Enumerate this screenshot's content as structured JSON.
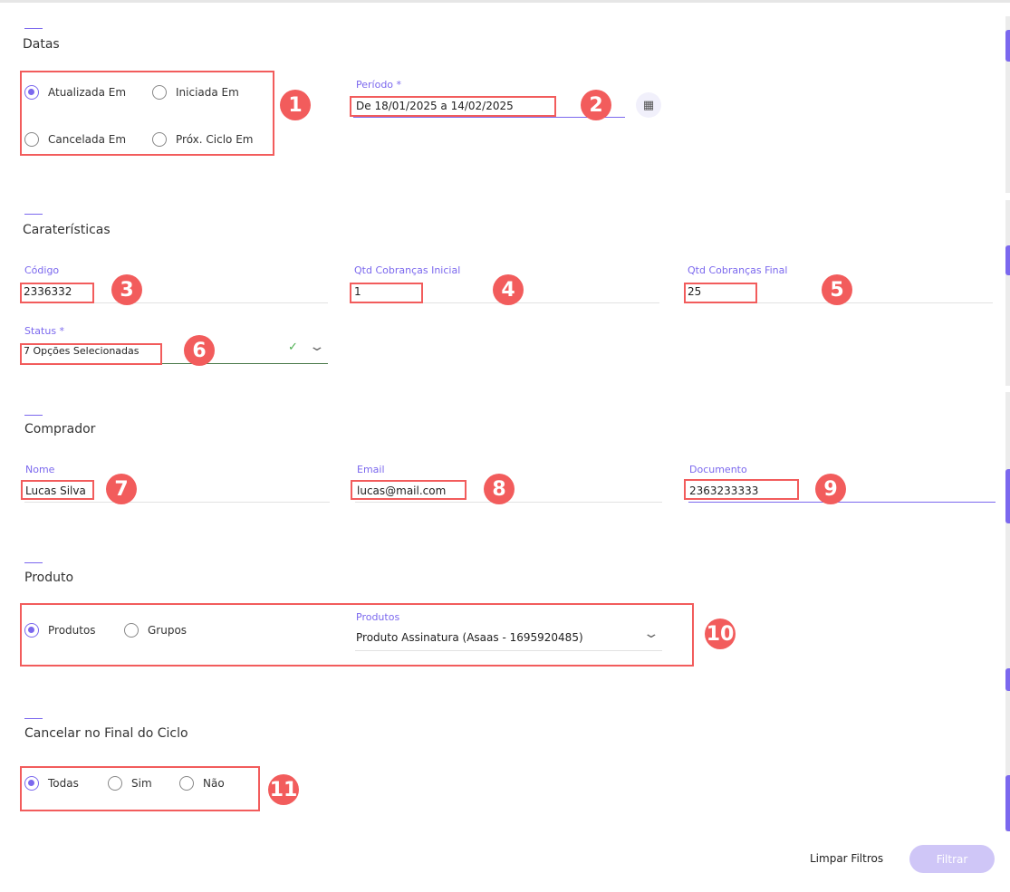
{
  "sections": {
    "datas": "Datas",
    "caracteristicas": "Caraterísticas",
    "comprador": "Comprador",
    "produto": "Produto",
    "cancelar": "Cancelar no Final do Ciclo"
  },
  "datas": {
    "radios": [
      "Atualizada Em",
      "Iniciada Em",
      "Cancelada Em",
      "Próx. Ciclo Em"
    ],
    "selected": "Atualizada Em",
    "periodo_label": "Período *",
    "periodo_value": "De  18/01/2025  a  14/02/2025"
  },
  "caracteristicas": {
    "codigo_label": "Código",
    "codigo_value": "2336332",
    "qtd_ini_label": "Qtd Cobranças Inicial",
    "qtd_ini_value": "1",
    "qtd_fin_label": "Qtd Cobranças Final",
    "qtd_fin_value": "25",
    "status_label": "Status *",
    "status_value": "7 Opções Selecionadas"
  },
  "comprador": {
    "nome_label": "Nome",
    "nome_value": "Lucas Silva",
    "email_label": "Email",
    "email_value": "lucas@mail.com",
    "doc_label": "Documento",
    "doc_value": "2363233333"
  },
  "produto": {
    "radios": [
      "Produtos",
      "Grupos"
    ],
    "selected": "Produtos",
    "produtos_label": "Produtos",
    "produtos_value": "Produto Assinatura (Asaas - 1695920485)"
  },
  "cancelar": {
    "radios": [
      "Todas",
      "Sim",
      "Não"
    ],
    "selected": "Todas"
  },
  "actions": {
    "clear": "Limpar Filtros",
    "filter": "Filtrar"
  },
  "badges": [
    "1",
    "2",
    "3",
    "4",
    "5",
    "6",
    "7",
    "8",
    "9",
    "10",
    "11"
  ],
  "colors": {
    "accent": "#7b68ee",
    "annotation": "#f25c5c",
    "filter_disabled": "#cfc6f7"
  }
}
